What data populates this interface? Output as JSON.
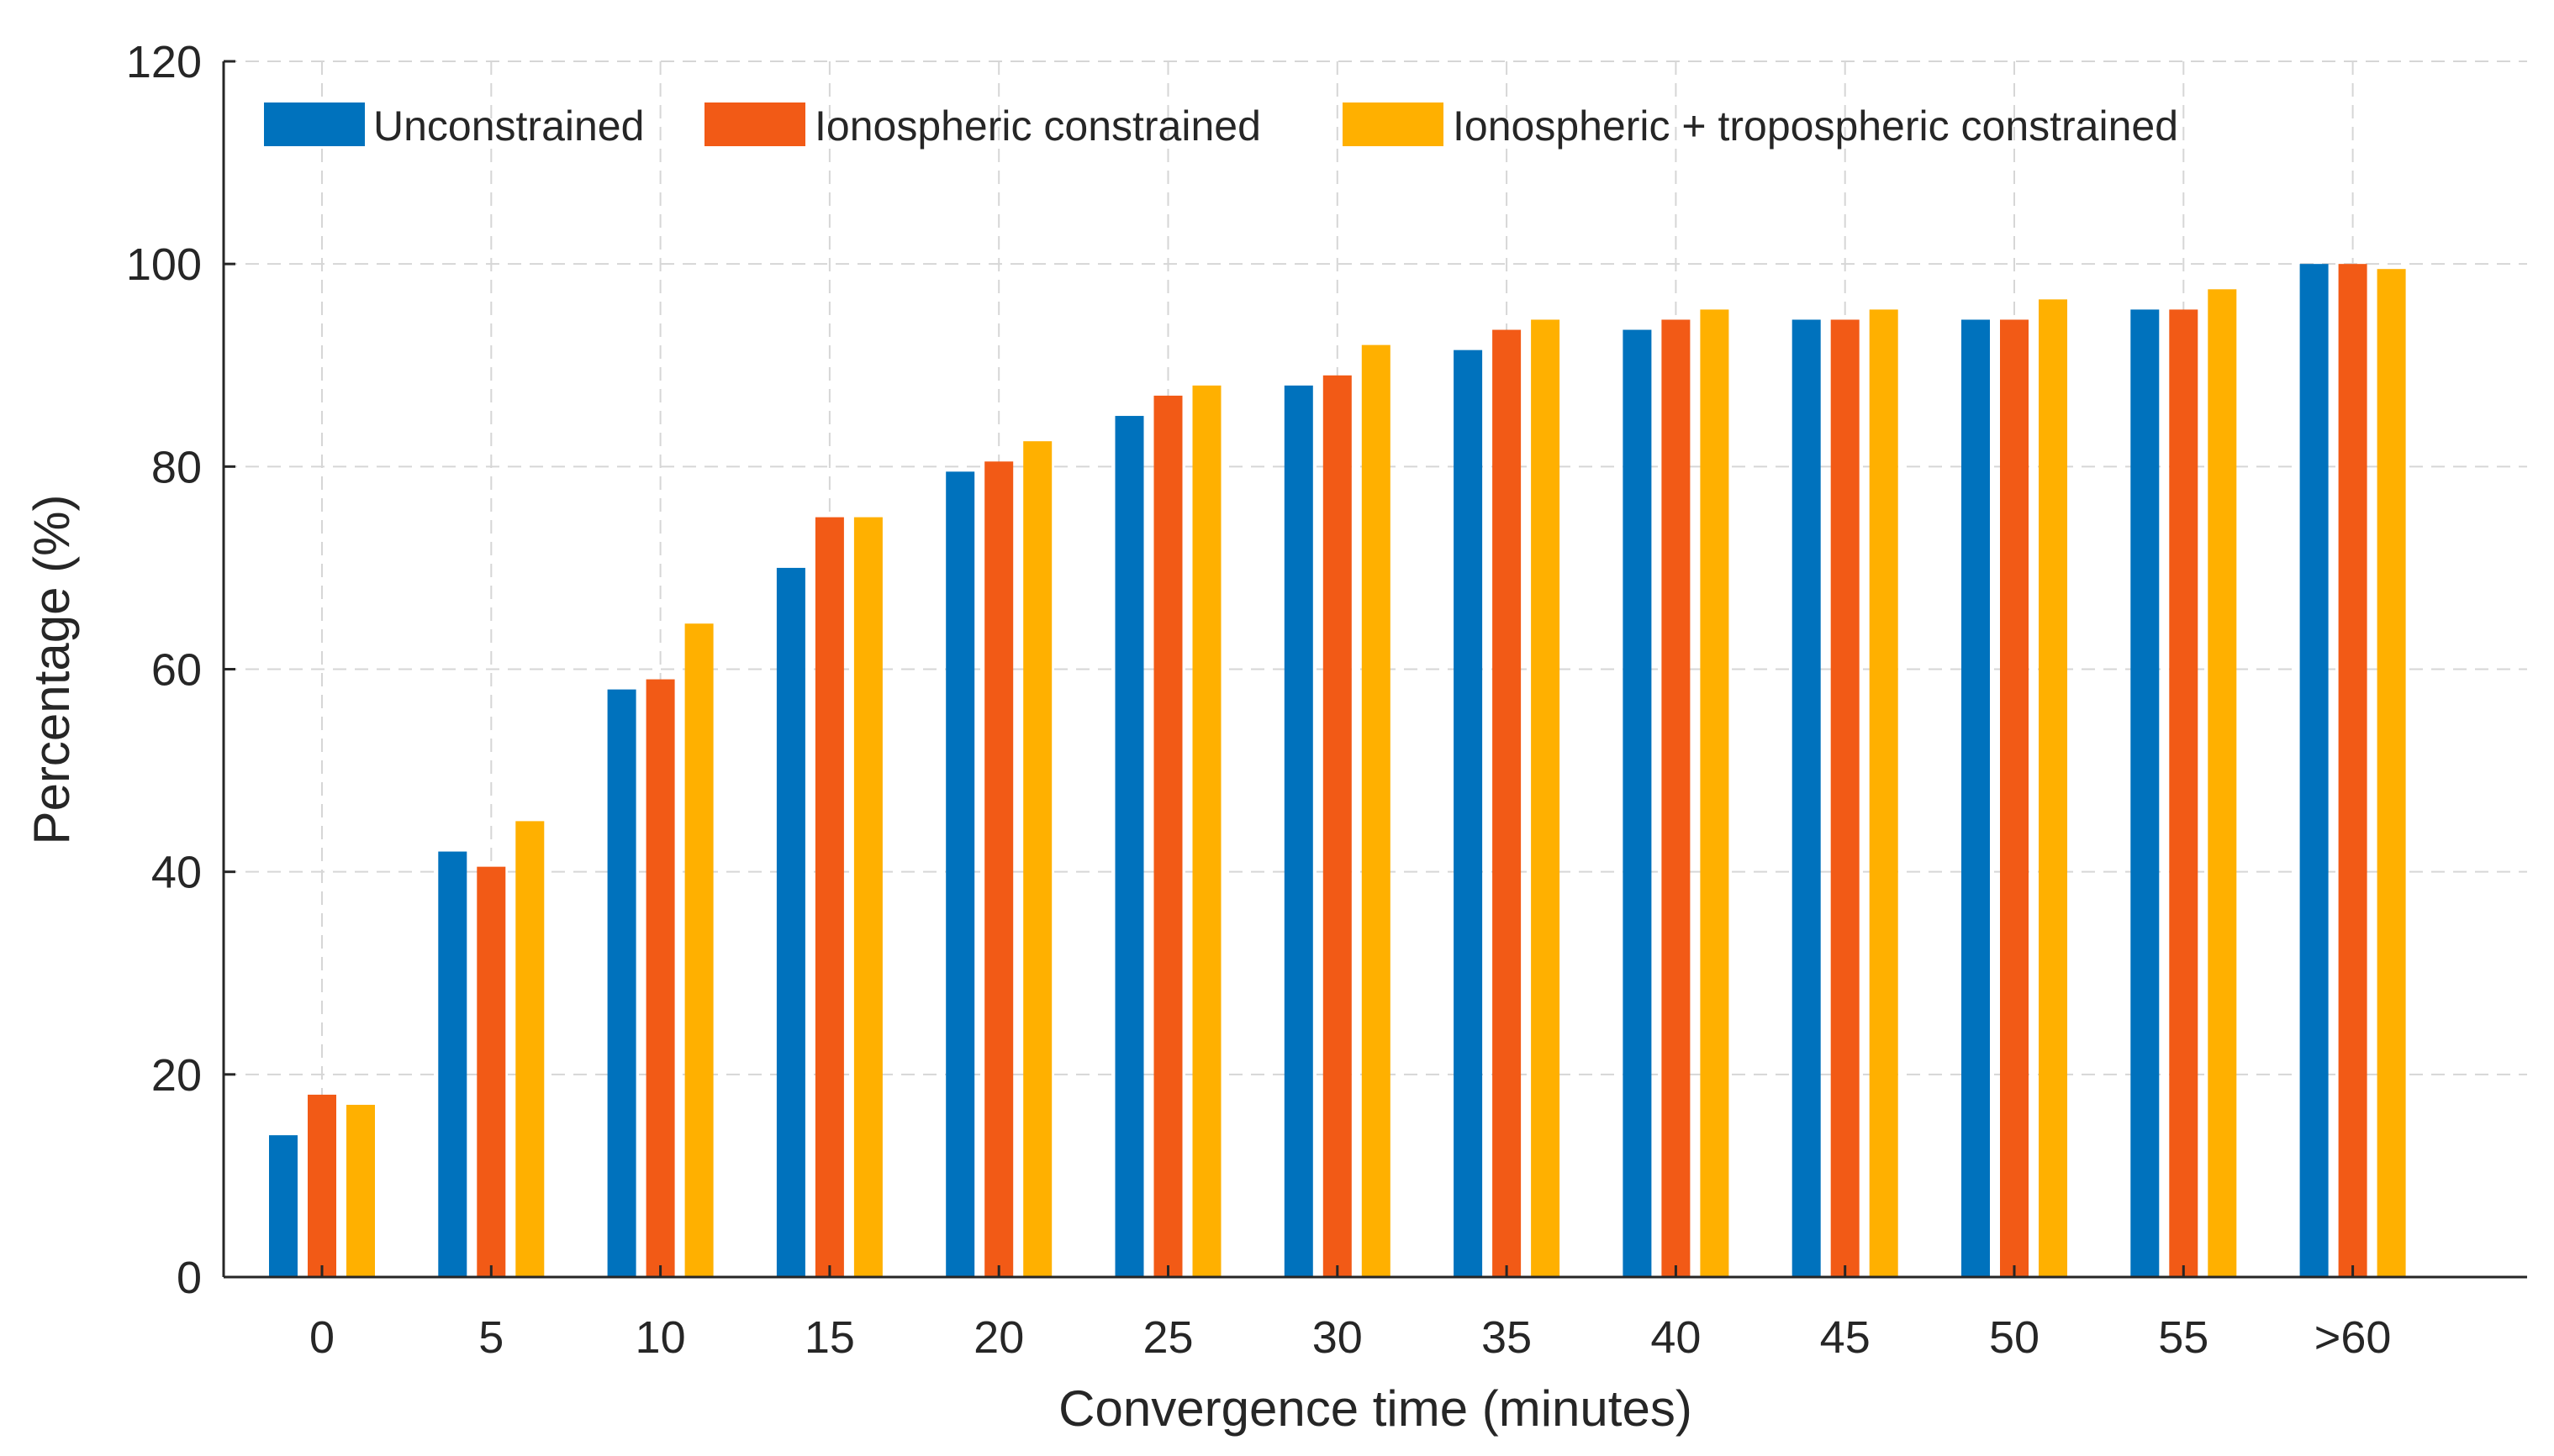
{
  "chart_data": {
    "type": "bar",
    "title": "",
    "xlabel": "Convergence time (minutes)",
    "ylabel": "Percentage (%)",
    "ylim": [
      0,
      120
    ],
    "yticks": [
      0,
      20,
      40,
      60,
      80,
      100,
      120
    ],
    "grid": true,
    "legend_position": "top-left",
    "categories": [
      "0",
      "5",
      "10",
      "15",
      "20",
      "25",
      "30",
      "35",
      "40",
      "45",
      "50",
      "55",
      ">60"
    ],
    "series": [
      {
        "name": "Unconstrained",
        "color": "#0072BD",
        "values": [
          14,
          42,
          58,
          70,
          79.5,
          85,
          88,
          91.5,
          93.5,
          94.5,
          94.5,
          95.5,
          100
        ]
      },
      {
        "name": "Ionospheric constrained",
        "color": "#F25A16",
        "values": [
          18,
          40.5,
          59,
          75,
          80.5,
          87,
          89,
          93.5,
          94.5,
          94.5,
          94.5,
          95.5,
          100
        ]
      },
      {
        "name": "Ionospheric + tropospheric constrained",
        "color": "#FFB000",
        "values": [
          17,
          45,
          64.5,
          75,
          82.5,
          88,
          92,
          94.5,
          95.5,
          95.5,
          96.5,
          97.5,
          99.5
        ]
      }
    ]
  }
}
